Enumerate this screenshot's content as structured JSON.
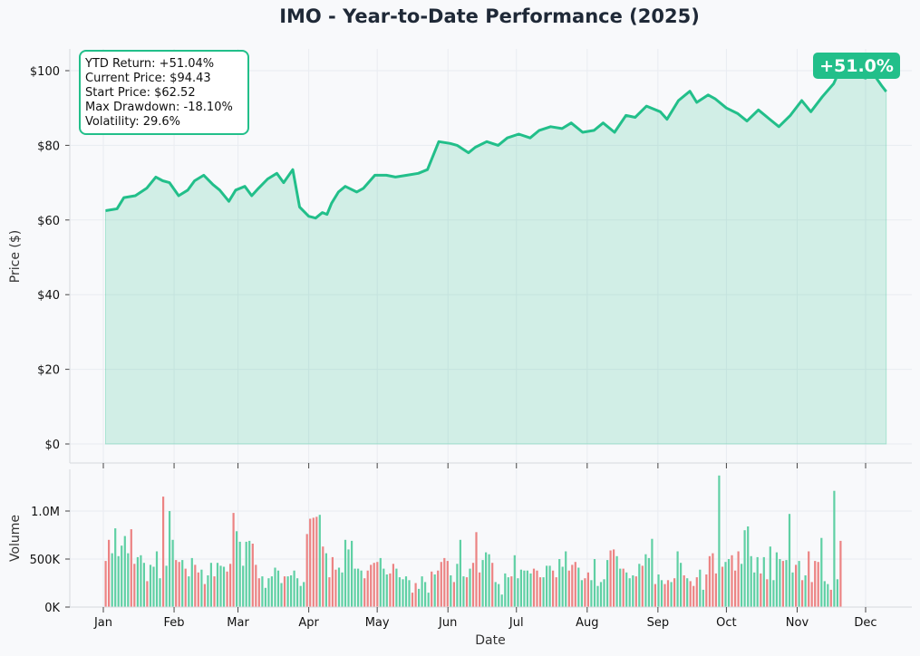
{
  "colors": {
    "price_line": "#22bf8a",
    "price_fill": "#22bf8a",
    "volume_up": "#5fd0a4",
    "volume_down": "#ec8383",
    "badge_bg": "#22bf8a",
    "stats_border": "#22bf8a"
  },
  "chart_data": [
    {
      "type": "area",
      "title": "IMO - Year-to-Date Performance (2025)",
      "xlabel": "",
      "ylabel": "Price ($)",
      "ylim": [
        0,
        105
      ],
      "yticks": [
        0,
        20,
        40,
        60,
        80,
        100
      ],
      "ytick_labels": [
        "$0",
        "$20",
        "$40",
        "$60",
        "$80",
        "$100"
      ],
      "grid": true,
      "badge": "+51.0%",
      "stats": [
        "YTD Return: +51.04%",
        "Current Price: $94.43",
        "Start Price: $62.52",
        "Max Drawdown: -18.10%",
        "Volatility: 29.6%"
      ],
      "series": [
        {
          "x": [
            "2025-01-02",
            "2025-01-07",
            "2025-01-10",
            "2025-01-15",
            "2025-01-20",
            "2025-01-24",
            "2025-01-27",
            "2025-01-30",
            "2025-02-03",
            "2025-02-07",
            "2025-02-10",
            "2025-02-14",
            "2025-02-18",
            "2025-02-21",
            "2025-02-25",
            "2025-02-28",
            "2025-03-04",
            "2025-03-07",
            "2025-03-10",
            "2025-03-14",
            "2025-03-18",
            "2025-03-21",
            "2025-03-25",
            "2025-03-28",
            "2025-04-01",
            "2025-04-04",
            "2025-04-07",
            "2025-04-09",
            "2025-04-11",
            "2025-04-14",
            "2025-04-17",
            "2025-04-22",
            "2025-04-25",
            "2025-04-30",
            "2025-05-05",
            "2025-05-09",
            "2025-05-14",
            "2025-05-19",
            "2025-05-23",
            "2025-05-28",
            "2025-06-02",
            "2025-06-05",
            "2025-06-10",
            "2025-06-13",
            "2025-06-18",
            "2025-06-23",
            "2025-06-27",
            "2025-07-02",
            "2025-07-07",
            "2025-07-11",
            "2025-07-16",
            "2025-07-21",
            "2025-07-25",
            "2025-07-30",
            "2025-08-04",
            "2025-08-08",
            "2025-08-13",
            "2025-08-18",
            "2025-08-22",
            "2025-08-27",
            "2025-09-02",
            "2025-09-05",
            "2025-09-10",
            "2025-09-15",
            "2025-09-18",
            "2025-09-23",
            "2025-09-26",
            "2025-10-01",
            "2025-10-06",
            "2025-10-10",
            "2025-10-15",
            "2025-10-20",
            "2025-10-24",
            "2025-10-29",
            "2025-11-03",
            "2025-11-07",
            "2025-11-12",
            "2025-11-17",
            "2025-11-20",
            "2025-11-25",
            "2025-12-01",
            "2025-12-04",
            "2025-12-08",
            "2025-12-10"
          ],
          "values": [
            62.5,
            63.0,
            66.0,
            66.5,
            68.5,
            71.5,
            70.5,
            70.0,
            66.5,
            68.0,
            70.5,
            72.0,
            69.5,
            68.0,
            65.0,
            68.0,
            69.0,
            66.5,
            68.5,
            71.0,
            72.5,
            70.0,
            73.5,
            63.5,
            61.0,
            60.5,
            62.0,
            61.5,
            64.5,
            67.5,
            69.0,
            67.5,
            68.5,
            72.0,
            72.0,
            71.5,
            72.0,
            72.5,
            73.5,
            81.0,
            80.5,
            80.0,
            78.0,
            79.5,
            81.0,
            80.0,
            82.0,
            83.0,
            82.0,
            84.0,
            85.0,
            84.5,
            86.0,
            83.5,
            84.0,
            86.0,
            83.5,
            88.0,
            87.5,
            90.5,
            89.0,
            87.0,
            92.0,
            94.5,
            91.5,
            93.5,
            92.5,
            90.0,
            88.5,
            86.5,
            89.5,
            87.0,
            85.0,
            88.0,
            92.0,
            89.0,
            93.0,
            96.5,
            100.5,
            99.0,
            98.0,
            99.5,
            96.0,
            94.4
          ]
        }
      ]
    },
    {
      "type": "bar",
      "title": "",
      "xlabel": "Date",
      "ylabel": "Volume",
      "ylim": [
        0,
        1400000
      ],
      "yticks": [
        0,
        500000,
        1000000
      ],
      "ytick_labels": [
        "0K",
        "500K",
        "1.0M"
      ],
      "x_tick_dates": [
        "2025-01-01",
        "2025-02-01",
        "2025-03-01",
        "2025-04-01",
        "2025-05-01",
        "2025-06-01",
        "2025-07-01",
        "2025-08-01",
        "2025-09-01",
        "2025-10-01",
        "2025-11-01",
        "2025-12-01"
      ],
      "x_tick_labels": [
        "Jan",
        "Feb",
        "Mar",
        "Apr",
        "May",
        "Jun",
        "Jul",
        "Aug",
        "Sep",
        "Oct",
        "Nov",
        "Dec"
      ],
      "grid": true,
      "first_bar_date": "2025-01-02",
      "bar_spacing_days": 1.4,
      "series": [
        {
          "name": "",
          "values": [
            480000,
            700000,
            560000,
            820000,
            530000,
            640000,
            740000,
            560000,
            810000,
            450000,
            520000,
            540000,
            460000,
            270000,
            440000,
            420000,
            580000,
            300000,
            1150000,
            430000,
            1000000,
            700000,
            490000,
            470000,
            490000,
            400000,
            320000,
            510000,
            440000,
            360000,
            390000,
            240000,
            330000,
            460000,
            320000,
            460000,
            430000,
            420000,
            370000,
            450000,
            980000,
            790000,
            680000,
            430000,
            680000,
            690000,
            660000,
            440000,
            300000,
            320000,
            200000,
            300000,
            320000,
            410000,
            380000,
            250000,
            320000,
            320000,
            330000,
            380000,
            300000,
            220000,
            260000,
            760000,
            920000,
            930000,
            940000,
            960000,
            630000,
            560000,
            310000,
            520000,
            390000,
            410000,
            360000,
            700000,
            600000,
            690000,
            400000,
            400000,
            380000,
            300000,
            380000,
            440000,
            460000,
            470000,
            510000,
            400000,
            340000,
            350000,
            450000,
            400000,
            310000,
            290000,
            320000,
            280000,
            150000,
            250000,
            190000,
            320000,
            260000,
            150000,
            370000,
            340000,
            380000,
            470000,
            510000,
            480000,
            330000,
            260000,
            450000,
            700000,
            320000,
            310000,
            400000,
            460000,
            780000,
            360000,
            490000,
            570000,
            550000,
            460000,
            260000,
            240000,
            130000,
            350000,
            310000,
            320000,
            540000,
            300000,
            390000,
            380000,
            380000,
            350000,
            400000,
            380000,
            310000,
            310000,
            430000,
            430000,
            380000,
            310000,
            500000,
            420000,
            580000,
            380000,
            440000,
            470000,
            410000,
            280000,
            300000,
            360000,
            280000,
            500000,
            220000,
            260000,
            290000,
            490000,
            590000,
            600000,
            530000,
            400000,
            400000,
            360000,
            300000,
            330000,
            320000,
            450000,
            430000,
            550000,
            510000,
            710000,
            240000,
            340000,
            280000,
            240000,
            280000,
            260000,
            300000,
            580000,
            460000,
            330000,
            300000,
            270000,
            220000,
            310000,
            390000,
            180000,
            340000,
            530000,
            560000,
            350000,
            1370000,
            420000,
            470000,
            500000,
            540000,
            380000,
            580000,
            450000,
            800000,
            840000,
            530000,
            360000,
            520000,
            350000,
            520000,
            290000,
            630000,
            280000,
            570000,
            500000,
            480000,
            490000,
            970000,
            360000,
            440000,
            480000,
            280000,
            330000,
            580000,
            260000,
            480000,
            470000,
            720000,
            270000,
            240000,
            180000,
            1210000,
            290000,
            690000
          ],
          "colors": [
            "down",
            "down",
            "up",
            "up",
            "up",
            "up",
            "up",
            "up",
            "down",
            "down",
            "up",
            "up",
            "up",
            "down",
            "up",
            "up",
            "up",
            "up",
            "down",
            "up",
            "up",
            "up",
            "down",
            "down",
            "up",
            "down",
            "up",
            "up",
            "down",
            "down",
            "up",
            "down",
            "up",
            "up",
            "down",
            "up",
            "up",
            "up",
            "down",
            "down",
            "down",
            "up",
            "up",
            "up",
            "up",
            "up",
            "down",
            "down",
            "down",
            "up",
            "up",
            "up",
            "up",
            "up",
            "up",
            "up",
            "down",
            "up",
            "up",
            "up",
            "up",
            "up",
            "up",
            "down",
            "down",
            "down",
            "down",
            "up",
            "down",
            "up",
            "down",
            "down",
            "down",
            "up",
            "up",
            "up",
            "up",
            "up",
            "up",
            "up",
            "up",
            "down",
            "down",
            "down",
            "down",
            "down",
            "up",
            "up",
            "up",
            "down",
            "down",
            "up",
            "up",
            "up",
            "up",
            "up",
            "down",
            "down",
            "up",
            "up",
            "up",
            "up",
            "down",
            "up",
            "down",
            "down",
            "down",
            "down",
            "up",
            "down",
            "up",
            "up",
            "up",
            "down",
            "up",
            "down",
            "down",
            "down",
            "up",
            "up",
            "up",
            "down",
            "up",
            "up",
            "up",
            "up",
            "up",
            "down",
            "up",
            "up",
            "up",
            "up",
            "up",
            "up",
            "down",
            "down",
            "down",
            "up",
            "up",
            "up",
            "down",
            "down",
            "up",
            "up",
            "up",
            "down",
            "down",
            "down",
            "up",
            "up",
            "down",
            "down",
            "up",
            "up",
            "up",
            "up",
            "up",
            "up",
            "down",
            "down",
            "up",
            "up",
            "down",
            "up",
            "up",
            "up",
            "down",
            "up",
            "down",
            "up",
            "up",
            "up",
            "down",
            "up",
            "up",
            "down",
            "down",
            "up",
            "down",
            "up",
            "up",
            "down",
            "up",
            "down",
            "down",
            "down",
            "up",
            "up",
            "down",
            "down",
            "down",
            "down",
            "up",
            "down",
            "up",
            "up",
            "down",
            "down",
            "down",
            "up",
            "up",
            "up",
            "up",
            "up",
            "up",
            "down",
            "up",
            "down",
            "up",
            "up",
            "up",
            "up",
            "down",
            "up",
            "up",
            "up",
            "down",
            "up",
            "down",
            "up",
            "down",
            "down",
            "down",
            "down",
            "up",
            "up",
            "up",
            "down",
            "up",
            "up",
            "down",
            "up",
            "down",
            "up"
          ]
        }
      ]
    }
  ]
}
